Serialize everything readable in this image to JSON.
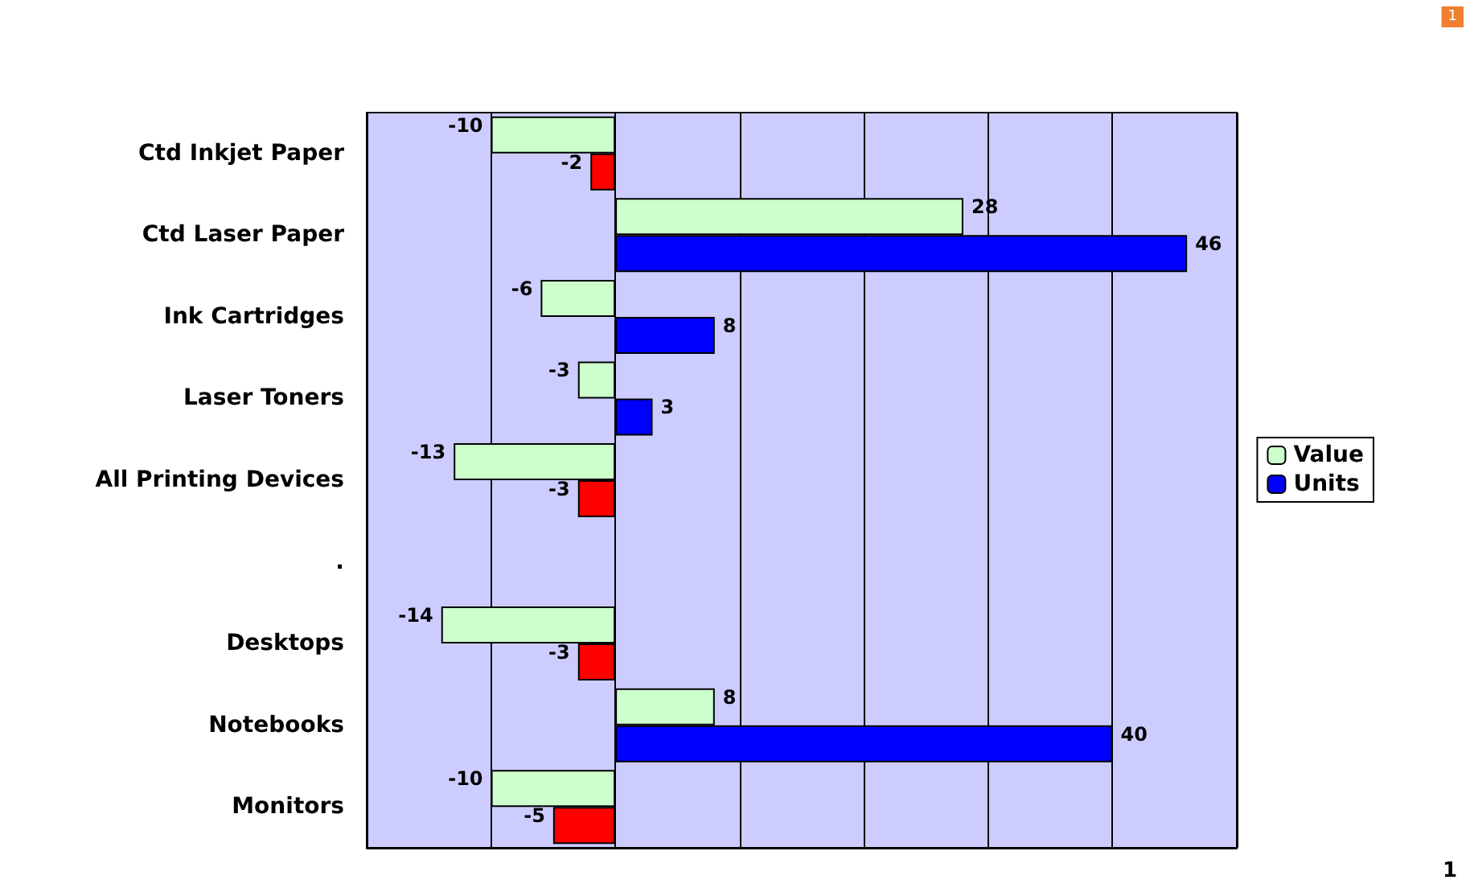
{
  "chart_data": {
    "type": "bar",
    "orientation": "horizontal",
    "categories": [
      "Ctd Inkjet Paper",
      "Ctd Laser Paper",
      "Ink Cartridges",
      "Laser Toners",
      "All Printing Devices",
      ".",
      "Desktops",
      "Notebooks",
      "Monitors"
    ],
    "series": [
      {
        "name": "Value",
        "color": "#ccffcc",
        "values": [
          -10,
          28,
          -6,
          -3,
          -13,
          null,
          -14,
          8,
          -10
        ]
      },
      {
        "name": "Units",
        "color": "#0000ff",
        "colors": [
          "#ff0000",
          "#0000ff",
          "#0000ff",
          "#0000ff",
          "#ff0000",
          null,
          "#ff0000",
          "#0000ff",
          "#ff0000"
        ],
        "values": [
          -2,
          46,
          8,
          3,
          -3,
          null,
          -3,
          40,
          -5
        ]
      }
    ],
    "xlim": [
      -20,
      50
    ],
    "xticks": [
      {
        "value": -20,
        "label": null
      },
      {
        "value": -10,
        "label": null
      },
      {
        "value": 0,
        "label": null
      },
      {
        "value": 10,
        "label": null
      },
      {
        "value": 20,
        "label": null
      },
      {
        "value": 30,
        "label": null
      },
      {
        "value": 40,
        "label": null
      },
      {
        "value": 50,
        "label": null
      }
    ],
    "grid": "x",
    "legend": "right",
    "data_labels": true,
    "annotations": [
      "1",
      "1"
    ]
  }
}
